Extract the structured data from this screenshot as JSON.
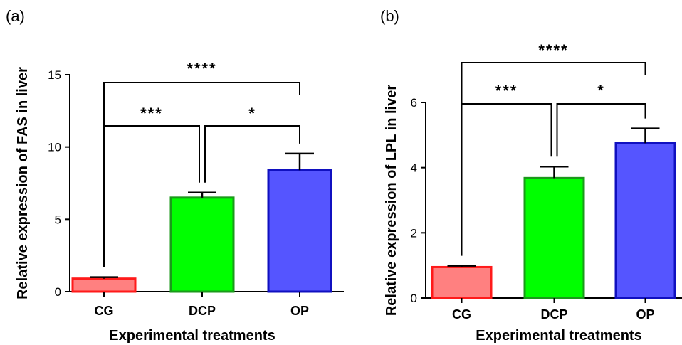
{
  "chart_data": [
    {
      "type": "bar",
      "panel": "(a)",
      "categories": [
        "CG",
        "DCP",
        "OP"
      ],
      "values": [
        0.9,
        6.5,
        8.4
      ],
      "errors": [
        0.1,
        0.35,
        1.15
      ],
      "colors": [
        "#ff8080",
        "#00ff00",
        "#5555ff"
      ],
      "edge_colors": [
        "#ff1a1a",
        "#1a9a1a",
        "#1010c0"
      ],
      "xlabel": "Experimental treatments",
      "ylabel": "Relative expression of FAS in liver",
      "ylim": [
        0,
        15
      ],
      "yticks": [
        0,
        5,
        10,
        15
      ],
      "significance": [
        {
          "from": "CG",
          "to": "DCP",
          "label": "***"
        },
        {
          "from": "DCP",
          "to": "OP",
          "label": "*"
        },
        {
          "from": "CG",
          "to": "OP",
          "label": "****"
        }
      ],
      "grid": false
    },
    {
      "type": "bar",
      "panel": "(b)",
      "categories": [
        "CG",
        "DCP",
        "OP"
      ],
      "values": [
        0.95,
        3.68,
        4.75
      ],
      "errors": [
        0.04,
        0.35,
        0.45
      ],
      "colors": [
        "#ff8080",
        "#00ff00",
        "#5555ff"
      ],
      "edge_colors": [
        "#ff1a1a",
        "#1a9a1a",
        "#1010c0"
      ],
      "xlabel": "Experimental treatments",
      "ylabel": "Relative expression of LPL in liver",
      "ylim": [
        0,
        6
      ],
      "yticks": [
        0,
        2,
        4,
        6
      ],
      "significance": [
        {
          "from": "CG",
          "to": "DCP",
          "label": "***"
        },
        {
          "from": "DCP",
          "to": "OP",
          "label": "*"
        },
        {
          "from": "CG",
          "to": "OP",
          "label": "****"
        }
      ],
      "grid": false
    }
  ]
}
